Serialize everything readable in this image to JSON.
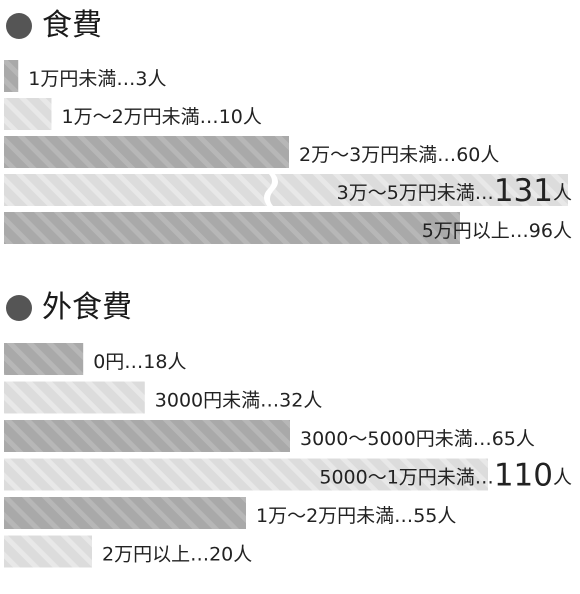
{
  "chart_data": [
    {
      "type": "bar",
      "orientation": "horizontal",
      "title": "食費",
      "unit": "人",
      "categories": [
        "1万円未満",
        "1万～2万円未満",
        "2万～3万円未満",
        "3万～5万円未満",
        "5万円以上"
      ],
      "values": [
        3,
        10,
        60,
        131,
        96
      ],
      "value_labels": [
        "3",
        "10",
        "60",
        "131",
        "96"
      ],
      "separator": "…",
      "highlight_index": 3,
      "broken_bar_index": 3,
      "styles": [
        "dark",
        "light",
        "dark",
        "light",
        "dark"
      ],
      "colors": {
        "dark": "#a9a9a9",
        "light": "#dcdcdc",
        "stripe": "#ffffff"
      }
    },
    {
      "type": "bar",
      "orientation": "horizontal",
      "title": "外食費",
      "unit": "人",
      "categories": [
        "0円",
        "3000円未満",
        "3000～5000円未満",
        "5000～1万円未満",
        "1万～2万円未満",
        "2万円以上"
      ],
      "values": [
        18,
        32,
        65,
        110,
        55,
        20
      ],
      "value_labels": [
        "18",
        "32",
        "65",
        "110",
        "55",
        "20"
      ],
      "separator": "…",
      "highlight_index": 3,
      "broken_bar_index": -1,
      "styles": [
        "dark",
        "light",
        "dark",
        "light",
        "dark",
        "light"
      ],
      "colors": {
        "dark": "#a9a9a9",
        "light": "#dcdcdc",
        "stripe": "#ffffff"
      }
    }
  ]
}
